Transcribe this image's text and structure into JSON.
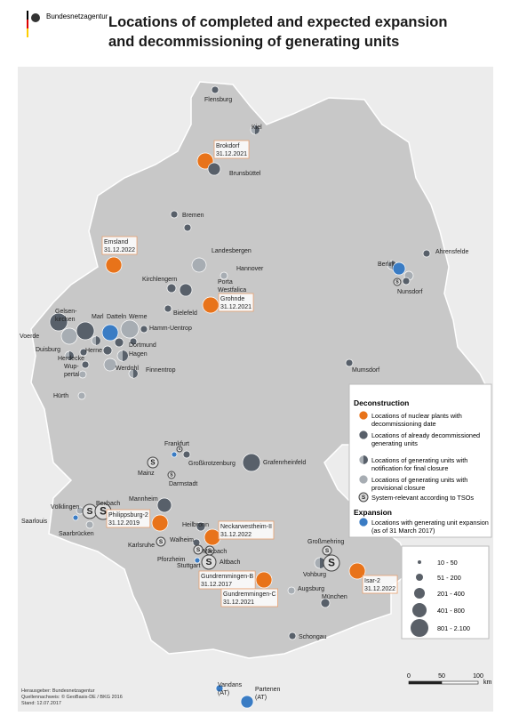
{
  "header": {
    "logo_text": "Bundesnetzagentur",
    "title_lines": [
      "Locations of completed and expected expansion",
      "and decommissioning of generating units"
    ]
  },
  "places": [
    {
      "lines": [
        "Flensburg"
      ]
    },
    {
      "lines": [
        "Kiel"
      ]
    },
    {
      "lines": [
        "Brokdorf",
        "31.12.2021"
      ]
    },
    {
      "lines": [
        "Brunsbüttel"
      ]
    },
    {
      "lines": [
        "Bremen"
      ]
    },
    {
      "lines": [
        "Emsland",
        "31.12.2022"
      ]
    },
    {
      "lines": [
        "Landesbergen"
      ]
    },
    {
      "lines": [
        "Hannover"
      ]
    },
    {
      "lines": [
        "Ahrensfelde"
      ]
    },
    {
      "lines": [
        "Berlin"
      ]
    },
    {
      "lines": [
        "Nunsdorf"
      ]
    },
    {
      "lines": [
        "Kirchlengern"
      ]
    },
    {
      "lines": [
        "Porta",
        "Westfalica"
      ]
    },
    {
      "lines": [
        "Grohnde",
        "31.12.2021"
      ]
    },
    {
      "lines": [
        "Bielefeld"
      ]
    },
    {
      "lines": [
        "Gelsen-",
        "kirchen"
      ]
    },
    {
      "lines": [
        "Marl"
      ]
    },
    {
      "lines": [
        "Datteln"
      ]
    },
    {
      "lines": [
        "Werne"
      ]
    },
    {
      "lines": [
        "Voerde"
      ]
    },
    {
      "lines": [
        "Hamm-Uentrop"
      ]
    },
    {
      "lines": [
        "Dortmund"
      ]
    },
    {
      "lines": [
        "Duisburg"
      ]
    },
    {
      "lines": [
        "Herne"
      ]
    },
    {
      "lines": [
        "Herdecke"
      ]
    },
    {
      "lines": [
        "Hagen"
      ]
    },
    {
      "lines": [
        "Wup-",
        "pertal"
      ]
    },
    {
      "lines": [
        "Werdohl"
      ]
    },
    {
      "lines": [
        "Finnentrop"
      ]
    },
    {
      "lines": [
        "Mumsdorf"
      ]
    },
    {
      "lines": [
        "Hürth"
      ]
    },
    {
      "lines": [
        "Frankfurt"
      ]
    },
    {
      "lines": [
        "Großkrotzenburg"
      ]
    },
    {
      "lines": [
        "Grafenrheinfeld"
      ]
    },
    {
      "lines": [
        "Mainz"
      ]
    },
    {
      "lines": [
        "Darmstadt"
      ]
    },
    {
      "lines": [
        "Mannheim"
      ]
    },
    {
      "lines": [
        "Völklingen"
      ]
    },
    {
      "lines": [
        "Bexbach"
      ]
    },
    {
      "lines": [
        "Philippsburg-2",
        "31.12.2019"
      ]
    },
    {
      "lines": [
        "Saarlouis"
      ]
    },
    {
      "lines": [
        "Saarbrücken"
      ]
    },
    {
      "lines": [
        "Heilbronn"
      ]
    },
    {
      "lines": [
        "Neckarwestheim-II",
        "31.12.2022"
      ]
    },
    {
      "lines": [
        "Karlsruhe"
      ]
    },
    {
      "lines": [
        "Walheim"
      ]
    },
    {
      "lines": [
        "Marbach"
      ]
    },
    {
      "lines": [
        "Großmehring"
      ]
    },
    {
      "lines": [
        "Pforzheim"
      ]
    },
    {
      "lines": [
        "Altbach"
      ]
    },
    {
      "lines": [
        "Stuttgart"
      ]
    },
    {
      "lines": [
        "Vohburg"
      ]
    },
    {
      "lines": [
        "Gundremmingen-B",
        "31.12.2017"
      ]
    },
    {
      "lines": [
        "Isar-2",
        "31.12.2022"
      ]
    },
    {
      "lines": [
        "Augsburg"
      ]
    },
    {
      "lines": [
        "Gundremmingen-C",
        "31.12.2021"
      ]
    },
    {
      "lines": [
        "München"
      ]
    },
    {
      "lines": [
        "Schongau"
      ]
    },
    {
      "lines": [
        "Vandans",
        "(AT)"
      ]
    },
    {
      "lines": [
        "Partenen",
        "(AT)"
      ]
    }
  ],
  "legend": {
    "deconstruction_title": "Deconstruction",
    "items": [
      "Locations of nuclear plants with decommissioning date",
      "Locations of already decommissioned generating units",
      "Locations of generating units with notification for final closure",
      "Locations of generating units with provisional closure",
      "System-relevant according to TSOs"
    ],
    "system_symbol": "S",
    "expansion_title": "Expansion",
    "expansion_item": "Locations with generating unit expansion (as of 31 March 2017)",
    "sizes": [
      "10 - 50",
      "51 - 200",
      "201 - 400",
      "401 - 800",
      "801 - 2.100"
    ]
  },
  "scale": {
    "labels": [
      "0",
      "50",
      "100"
    ],
    "unit": "km"
  },
  "footer": [
    "Herausgeber: Bundesnetzagentur",
    "Quellennachweis: © GeoBasis-DE / BKG 2016",
    "Stand: 12.07.2017"
  ]
}
